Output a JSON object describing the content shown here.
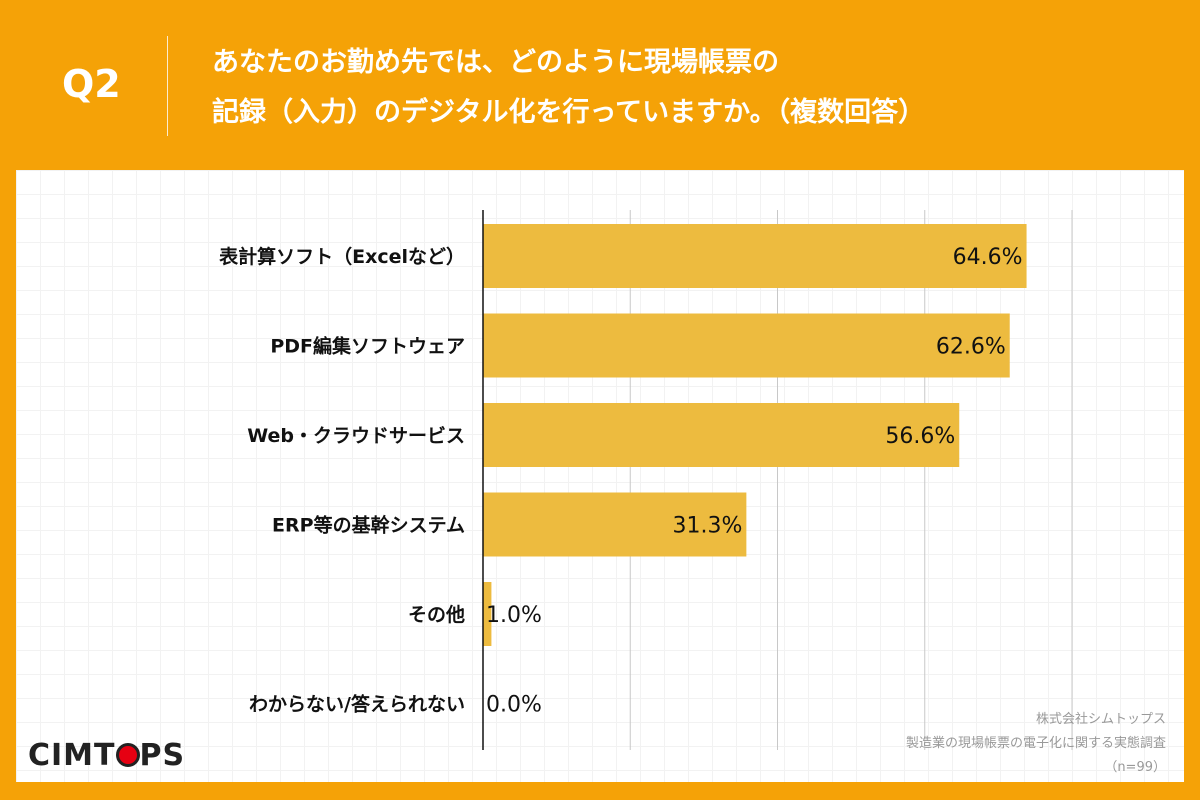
{
  "header": {
    "q_label": "Q2",
    "title_line1": "あなたのお勤め先では、どのように現場帳票の",
    "title_line2": "記録（入力）のデジタル化を行っていますか。（複数回答）"
  },
  "logo": {
    "text_before": "CIMT",
    "text_after": "PS"
  },
  "source": {
    "company": "株式会社シムトップス",
    "survey": "製造業の現場帳票の電子化に関する実態調査",
    "n": "（n=99）"
  },
  "chart_data": {
    "type": "bar",
    "orientation": "horizontal",
    "categories": [
      "表計算ソフト（Excelなど）",
      "PDF編集ソフトウェア",
      "Web・クラウドサービス",
      "ERP等の基幹システム",
      "その他",
      "わからない/答えられない"
    ],
    "values": [
      64.6,
      62.6,
      56.6,
      31.3,
      1.0,
      0.0
    ],
    "labels": [
      "64.6%",
      "62.6%",
      "56.6%",
      "31.3%",
      "1.0%",
      "0.0%"
    ],
    "xlim": [
      0,
      70
    ],
    "grid": true,
    "bar_color": "#edbb3f"
  },
  "colors": {
    "background": "#f5a207",
    "accent": "#e60012"
  }
}
